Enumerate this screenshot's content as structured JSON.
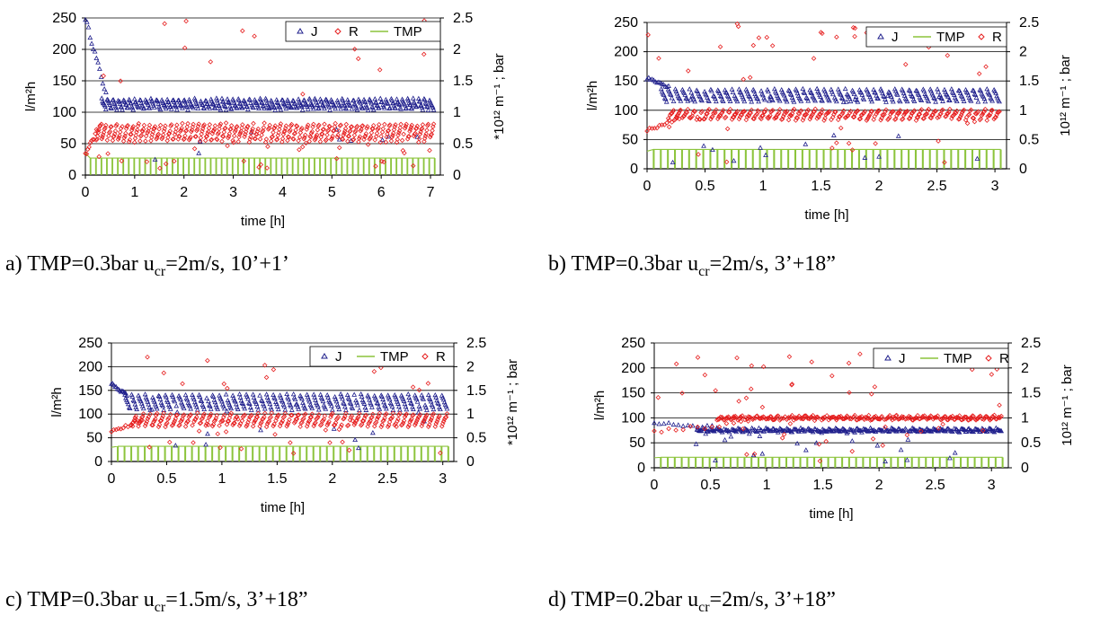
{
  "colors": {
    "J": "#1f1f8c",
    "R": "#e61e1e",
    "TMP": "#8cc43c",
    "grid": "#000000"
  },
  "legend_labels": {
    "J": "J",
    "R": "R",
    "TMP": "TMP"
  },
  "chart_data": [
    {
      "type": "scatter",
      "caption": {
        "prefix": "a)  TMP=0.3bar u",
        "sub": "cr",
        "suffix": "=2m/s, 10’+1’"
      },
      "legend_order": [
        "J",
        "R",
        "TMP"
      ],
      "ylabel_left": "l/m²h",
      "ylabel_right": "*10¹² m⁻¹ ; bar",
      "xlabel": "time [h]",
      "xlim": [
        0,
        7.2
      ],
      "xticks": [
        0,
        1,
        2,
        3,
        4,
        5,
        6,
        7
      ],
      "xtick_labels": [
        "0",
        "1",
        "2",
        "3",
        "4",
        "5",
        "6",
        "7"
      ],
      "ylim_left": [
        0,
        250
      ],
      "yticks_left": [
        "0",
        "50",
        "100",
        "150",
        "200",
        "250"
      ],
      "ylim_right": [
        0,
        2.5
      ],
      "yticks_right": [
        "0",
        "0.5",
        "1",
        "1.5",
        "2",
        "2.5"
      ],
      "grid": "horizontal",
      "series": [
        {
          "name": "J",
          "baseline": 115,
          "teeth": [
            120,
            105
          ],
          "start": [
            250,
            120
          ],
          "start_dur": 0.45,
          "cycles": 64,
          "drop_frac": 0.1,
          "jitter": 4
        },
        {
          "name": "R",
          "baseline": 65,
          "teeth": [
            55,
            80
          ],
          "start": [
            30,
            90
          ],
          "start_dur": 0.35,
          "cycles": 64,
          "drop_frac": 0.25,
          "jitter": 6,
          "outliers": 18,
          "outlier_range": [
            100,
            250
          ]
        },
        {
          "name": "TMP",
          "value": 27,
          "start": 35,
          "cycles": 64
        }
      ]
    },
    {
      "type": "scatter",
      "caption": {
        "prefix": "b) TMP=0.3bar u",
        "sub": "cr",
        "suffix": "=2m/s, 3’+18”"
      },
      "legend_order": [
        "J",
        "TMP",
        "R"
      ],
      "ylabel_left": "l/m²h",
      "ylabel_right": "10¹² m⁻¹ ; bar",
      "xlabel": "time [h]",
      "xlim": [
        0,
        3.1
      ],
      "xticks": [
        0,
        0.5,
        1,
        1.5,
        2,
        2.5,
        3
      ],
      "xtick_labels": [
        "0",
        "0.5",
        "1",
        "1.5",
        "2",
        "2.5",
        "3"
      ],
      "ylim_left": [
        0,
        250
      ],
      "yticks_left": [
        "0",
        "50",
        "100",
        "150",
        "200",
        "250"
      ],
      "ylim_right": [
        0,
        2.5
      ],
      "yticks_right": [
        "0",
        "0.5",
        "1",
        "1.5",
        "2",
        "2.5"
      ],
      "grid": "horizontal",
      "series": [
        {
          "name": "J",
          "baseline": 125,
          "teeth": [
            135,
            115
          ],
          "start": [
            155,
            140
          ],
          "start_dur": 0.2,
          "cycles": 50,
          "drop_frac": 0.25,
          "jitter": 3
        },
        {
          "name": "R",
          "baseline": 95,
          "teeth": [
            85,
            100
          ],
          "start": [
            65,
            90
          ],
          "start_dur": 0.3,
          "cycles": 50,
          "drop_frac": 0.25,
          "jitter": 5,
          "outliers": 30,
          "outlier_range": [
            150,
            250
          ]
        },
        {
          "name": "TMP",
          "value": 33,
          "start": 30,
          "cycles": 50
        }
      ]
    },
    {
      "type": "scatter",
      "caption": {
        "prefix": "c) TMP=0.3bar u",
        "sub": "cr",
        "suffix": "=1.5m/s, 3’+18”"
      },
      "legend_order": [
        "J",
        "TMP",
        "R"
      ],
      "ylabel_left": "l/m²h",
      "ylabel_right": "*10¹² m⁻¹ ; bar",
      "xlabel": "time [h]",
      "xlim": [
        0,
        3.1
      ],
      "xticks": [
        0,
        0.5,
        1,
        1.5,
        2,
        2.5,
        3
      ],
      "xtick_labels": [
        "0",
        "0.5",
        "1",
        "1.5",
        "2",
        "2.5",
        "3"
      ],
      "ylim_left": [
        0,
        250
      ],
      "yticks_left": [
        "0",
        "50",
        "100",
        "150",
        "200",
        "250"
      ],
      "ylim_right": [
        0,
        2.5
      ],
      "yticks_right": [
        "0",
        "0.5",
        "1",
        "1.5",
        "2",
        "2.5"
      ],
      "grid": "horizontal",
      "series": [
        {
          "name": "J",
          "baseline": 125,
          "teeth": [
            140,
            110
          ],
          "start": [
            165,
            140
          ],
          "start_dur": 0.15,
          "cycles": 50,
          "drop_frac": 0.2,
          "jitter": 4
        },
        {
          "name": "R",
          "baseline": 90,
          "teeth": [
            75,
            100
          ],
          "start": [
            60,
            90
          ],
          "start_dur": 0.3,
          "cycles": 50,
          "drop_frac": 0.25,
          "jitter": 5,
          "outliers": 18,
          "outlier_range": [
            150,
            225
          ]
        },
        {
          "name": "TMP",
          "value": 32,
          "start": 30,
          "cycles": 50
        }
      ]
    },
    {
      "type": "scatter",
      "caption": {
        "prefix": "d) TMP=0.2bar u",
        "sub": "cr",
        "suffix": "=2m/s, 3’+18”"
      },
      "legend_order": [
        "J",
        "TMP",
        "R"
      ],
      "ylabel_left": "l/m²h",
      "ylabel_right": "10¹² m⁻¹ ; bar",
      "xlabel": "time [h]",
      "xlim": [
        0,
        3.15
      ],
      "xticks": [
        0,
        0.5,
        1,
        1.5,
        2,
        2.5,
        3
      ],
      "xtick_labels": [
        "0",
        "0.5",
        "1",
        "1.5",
        "2",
        "2.5",
        "3"
      ],
      "ylim_left": [
        0,
        250
      ],
      "yticks_left": [
        "0",
        "50",
        "100",
        "150",
        "200",
        "250"
      ],
      "ylim_right": [
        0,
        2.5
      ],
      "yticks_right": [
        "0",
        "0.5",
        "1",
        "1.5",
        "2",
        "2.5"
      ],
      "grid": "horizontal",
      "series": [
        {
          "name": "J",
          "baseline": 75,
          "teeth": [
            78,
            72
          ],
          "start": [
            90,
            80
          ],
          "start_dur": 0.6,
          "cycles": 50,
          "drop_frac": 0.3,
          "jitter": 3
        },
        {
          "name": "R",
          "baseline": 100,
          "teeth": [
            97,
            103
          ],
          "start": [
            75,
            90
          ],
          "start_dur": 0.9,
          "cycles": 50,
          "drop_frac": 0.3,
          "jitter": 5,
          "outliers": 28,
          "outlier_range": [
            120,
            230
          ]
        },
        {
          "name": "TMP",
          "value": 21,
          "start": 20,
          "cycles": 50
        }
      ]
    }
  ]
}
